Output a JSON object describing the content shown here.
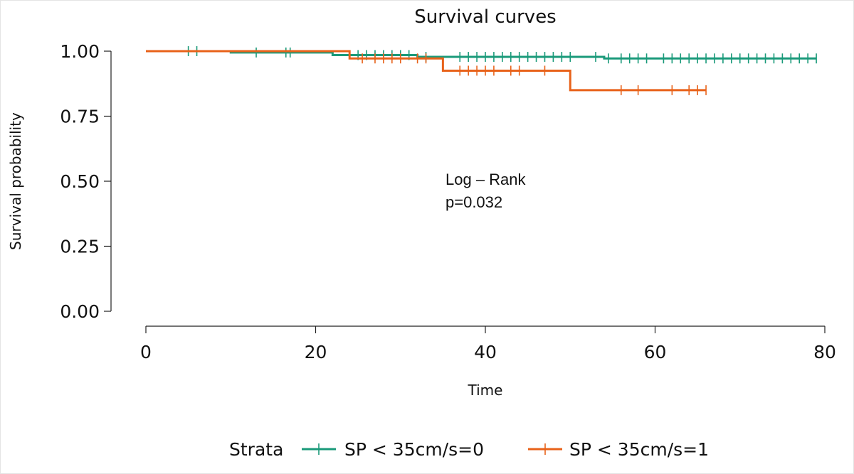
{
  "chart_data": {
    "type": "line",
    "title": "Survival curves",
    "xlabel": "Time",
    "ylabel": "Survival probability",
    "xlim": [
      0,
      80
    ],
    "ylim": [
      0,
      1
    ],
    "x_ticks": [
      0,
      20,
      40,
      60,
      80
    ],
    "x_tick_labels": [
      "0",
      "20",
      "40",
      "60",
      "80"
    ],
    "y_ticks": [
      0,
      0.25,
      0.5,
      0.75,
      1
    ],
    "y_tick_labels": [
      "0.00",
      "0.25",
      "0.50",
      "0.75",
      "1.00"
    ],
    "annotation": [
      "Log – Rank",
      "p=0.032"
    ],
    "legend": {
      "title": "Strata",
      "placement": "bottom",
      "entries": [
        "SP < 35cm/s=0",
        "SP < 35cm/s=1"
      ]
    },
    "series": [
      {
        "name": "SP < 35cm/s=0",
        "color": "#1a9a7a",
        "steps": [
          [
            0,
            1.0
          ],
          [
            10,
            0.995
          ],
          [
            22,
            0.985
          ],
          [
            32,
            0.978
          ],
          [
            54,
            0.972
          ],
          [
            79,
            0.972
          ]
        ],
        "censored": [
          5,
          6,
          13,
          16.5,
          17,
          25,
          26,
          27,
          28,
          29,
          30,
          31,
          33,
          37,
          38,
          39,
          40,
          41,
          42,
          43,
          44,
          45,
          46,
          47,
          48,
          49,
          50,
          53,
          54.5,
          56,
          57,
          58,
          59,
          61,
          62,
          63,
          64,
          65,
          66,
          67,
          68,
          69,
          70,
          71,
          72,
          73,
          74,
          75,
          76,
          77,
          78,
          79
        ]
      },
      {
        "name": "SP < 35cm/s=1",
        "color": "#e8621a",
        "steps": [
          [
            0,
            1.0
          ],
          [
            24,
            0.972
          ],
          [
            35,
            0.925
          ],
          [
            50,
            0.85
          ],
          [
            66,
            0.85
          ]
        ],
        "censored": [
          25.5,
          27,
          28,
          29,
          30,
          32,
          33,
          37,
          38,
          39,
          40,
          41,
          43,
          44,
          47,
          56,
          58,
          62,
          64,
          65,
          66
        ]
      }
    ]
  }
}
